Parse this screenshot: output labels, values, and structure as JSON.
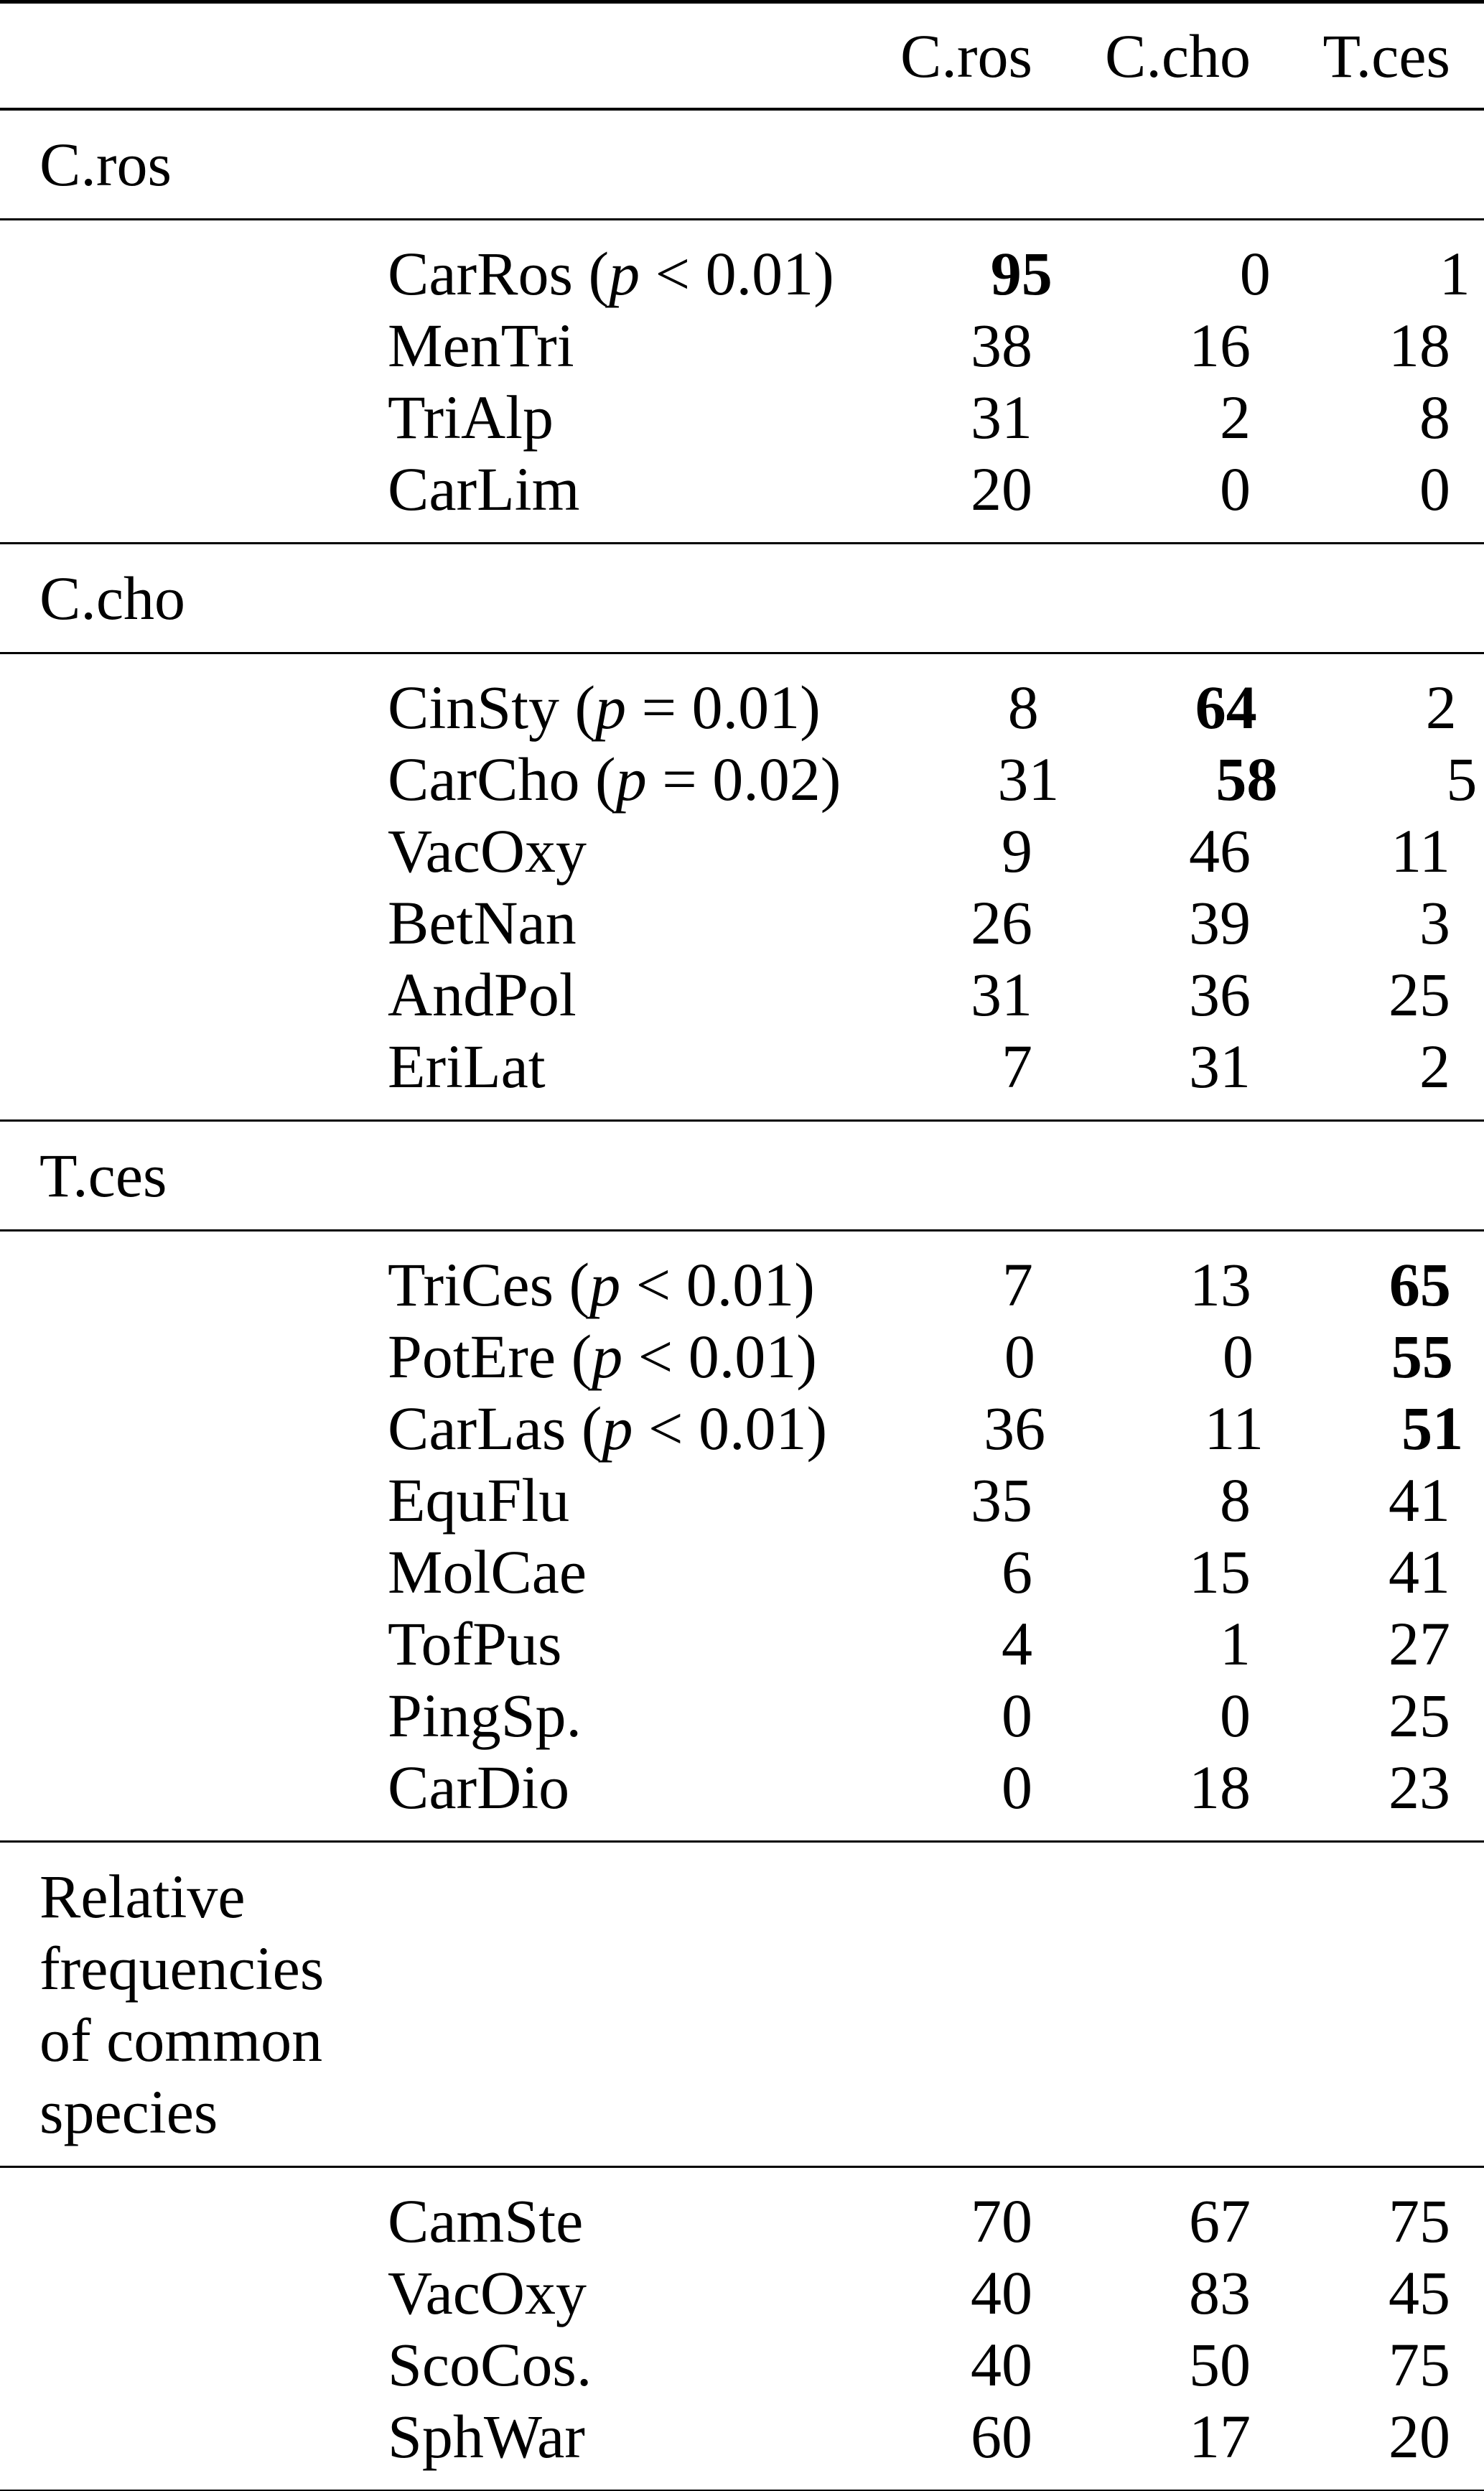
{
  "page": {
    "background_color": "#ffffff",
    "text_color": "#000000"
  },
  "table": {
    "columns": [
      {
        "key": "cros",
        "label": "C.ros"
      },
      {
        "key": "ccho",
        "label": "C.cho"
      },
      {
        "key": "tces",
        "label": "T.ces"
      }
    ],
    "sections": [
      {
        "label": "C.ros",
        "rows": [
          {
            "species": "CarRos",
            "p": "(p < 0.01)",
            "values": [
              95,
              0,
              1
            ],
            "bold_index": 0
          },
          {
            "species": "MenTri",
            "p": null,
            "values": [
              38,
              16,
              18
            ],
            "bold_index": -1
          },
          {
            "species": "TriAlp",
            "p": null,
            "values": [
              31,
              2,
              8
            ],
            "bold_index": -1
          },
          {
            "species": "CarLim",
            "p": null,
            "values": [
              20,
              0,
              0
            ],
            "bold_index": -1
          }
        ]
      },
      {
        "label": "C.cho",
        "rows": [
          {
            "species": "CinSty",
            "p": "(p = 0.01)",
            "values": [
              8,
              64,
              2
            ],
            "bold_index": 1
          },
          {
            "species": "CarCho",
            "p": "(p = 0.02)",
            "values": [
              31,
              58,
              5
            ],
            "bold_index": 1
          },
          {
            "species": "VacOxy",
            "p": null,
            "values": [
              9,
              46,
              11
            ],
            "bold_index": -1
          },
          {
            "species": "BetNan",
            "p": null,
            "values": [
              26,
              39,
              3
            ],
            "bold_index": -1
          },
          {
            "species": "AndPol",
            "p": null,
            "values": [
              31,
              36,
              25
            ],
            "bold_index": -1
          },
          {
            "species": "EriLat",
            "p": null,
            "values": [
              7,
              31,
              2
            ],
            "bold_index": -1
          }
        ]
      },
      {
        "label": "T.ces",
        "rows": [
          {
            "species": "TriCes",
            "p": "(p < 0.01)",
            "values": [
              7,
              13,
              65
            ],
            "bold_index": 2
          },
          {
            "species": "PotEre",
            "p": "(p < 0.01)",
            "values": [
              0,
              0,
              55
            ],
            "bold_index": 2
          },
          {
            "species": "CarLas",
            "p": "(p < 0.01)",
            "values": [
              36,
              11,
              51
            ],
            "bold_index": 2
          },
          {
            "species": "EquFlu",
            "p": null,
            "values": [
              35,
              8,
              41
            ],
            "bold_index": -1
          },
          {
            "species": "MolCae",
            "p": null,
            "values": [
              6,
              15,
              41
            ],
            "bold_index": -1
          },
          {
            "species": "TofPus",
            "p": null,
            "values": [
              4,
              1,
              27
            ],
            "bold_index": -1
          },
          {
            "species": "PingSp.",
            "p": null,
            "values": [
              0,
              0,
              25
            ],
            "bold_index": -1
          },
          {
            "species": "CarDio",
            "p": null,
            "values": [
              0,
              18,
              23
            ],
            "bold_index": -1
          }
        ]
      },
      {
        "label": "Relative frequencies of common species",
        "label_lines": [
          "Relative",
          "frequencies",
          "of common",
          "species"
        ],
        "rows": [
          {
            "species": "CamSte",
            "p": null,
            "values": [
              70,
              67,
              75
            ],
            "bold_index": -1
          },
          {
            "species": "VacOxy",
            "p": null,
            "values": [
              40,
              83,
              45
            ],
            "bold_index": -1
          },
          {
            "species": "ScoCos.",
            "p": null,
            "values": [
              40,
              50,
              75
            ],
            "bold_index": -1
          },
          {
            "species": "SphWar",
            "p": null,
            "values": [
              60,
              17,
              20
            ],
            "bold_index": -1
          }
        ]
      }
    ]
  },
  "chart_data": {
    "type": "table",
    "title": "",
    "columns": [
      "",
      "C.ros",
      "C.cho",
      "T.ces"
    ],
    "sections": [
      {
        "group": "C.ros",
        "rows": [
          [
            "CarRos (p < 0.01)",
            95,
            0,
            1
          ],
          [
            "MenTri",
            38,
            16,
            18
          ],
          [
            "TriAlp",
            31,
            2,
            8
          ],
          [
            "CarLim",
            20,
            0,
            0
          ]
        ]
      },
      {
        "group": "C.cho",
        "rows": [
          [
            "CinSty (p = 0.01)",
            8,
            64,
            2
          ],
          [
            "CarCho (p = 0.02)",
            31,
            58,
            5
          ],
          [
            "VacOxy",
            9,
            46,
            11
          ],
          [
            "BetNan",
            26,
            39,
            3
          ],
          [
            "AndPol",
            31,
            36,
            25
          ],
          [
            "EriLat",
            7,
            31,
            2
          ]
        ]
      },
      {
        "group": "T.ces",
        "rows": [
          [
            "TriCes (p < 0.01)",
            7,
            13,
            65
          ],
          [
            "PotEre (p < 0.01)",
            0,
            0,
            55
          ],
          [
            "CarLas (p < 0.01)",
            36,
            11,
            51
          ],
          [
            "EquFlu",
            35,
            8,
            41
          ],
          [
            "MolCae",
            6,
            15,
            41
          ],
          [
            "TofPus",
            4,
            1,
            27
          ],
          [
            "PingSp.",
            0,
            0,
            25
          ],
          [
            "CarDio",
            0,
            18,
            23
          ]
        ]
      },
      {
        "group": "Relative frequencies of common species",
        "rows": [
          [
            "CamSte",
            70,
            67,
            75
          ],
          [
            "VacOxy",
            40,
            83,
            45
          ],
          [
            "ScoCos.",
            40,
            50,
            75
          ],
          [
            "SphWar",
            60,
            17,
            20
          ]
        ]
      }
    ],
    "bold_cells": [
      [
        "C.ros",
        "CarRos",
        "C.ros",
        95
      ],
      [
        "C.cho",
        "CinSty",
        "C.cho",
        64
      ],
      [
        "C.cho",
        "CarCho",
        "C.cho",
        58
      ],
      [
        "T.ces",
        "TriCes",
        "T.ces",
        65
      ],
      [
        "T.ces",
        "PotEre",
        "T.ces",
        55
      ],
      [
        "T.ces",
        "CarLas",
        "T.ces",
        51
      ]
    ]
  }
}
